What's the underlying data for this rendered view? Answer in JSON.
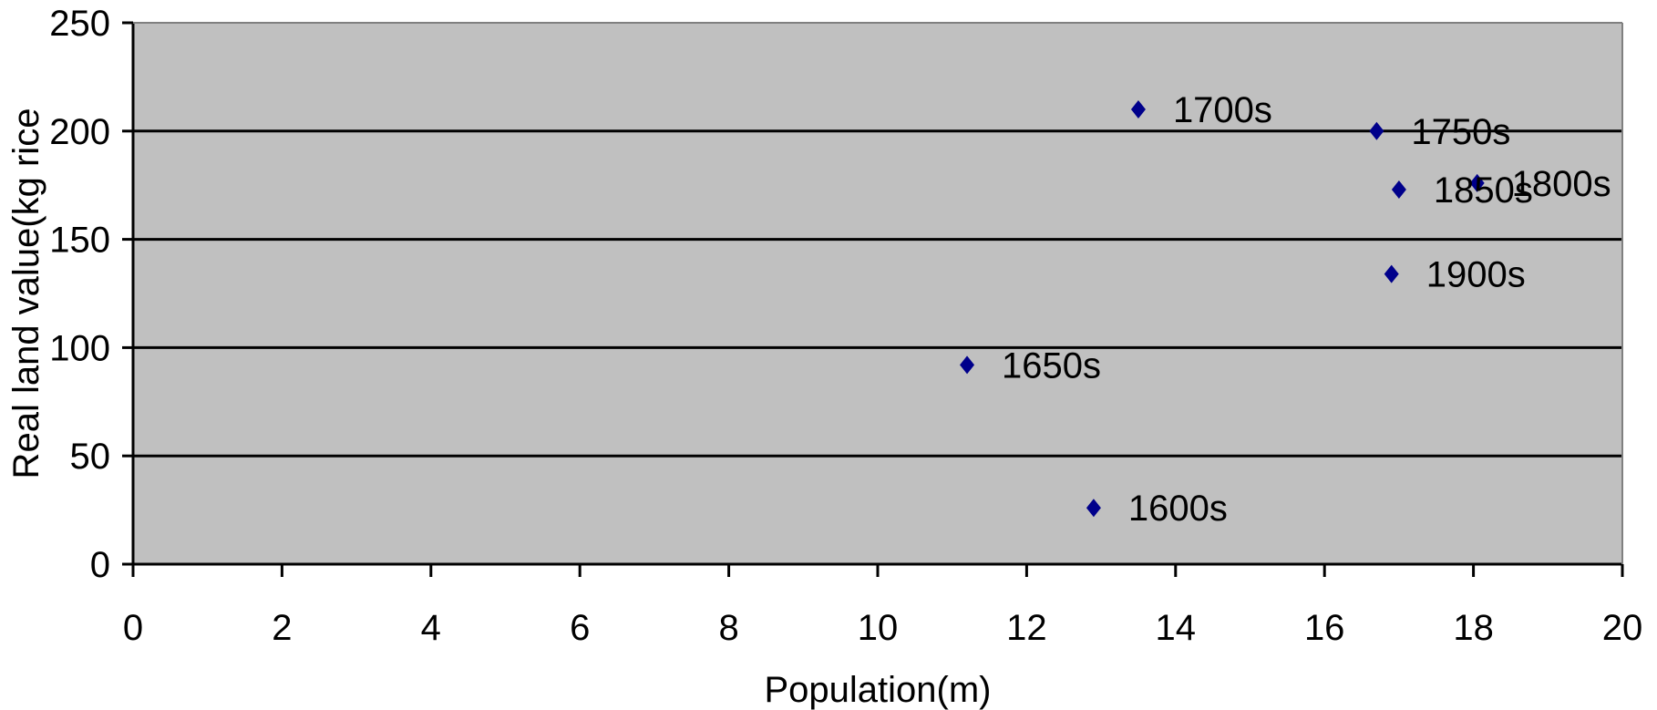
{
  "chart_data": {
    "type": "scatter",
    "xlabel": "Population(m)",
    "ylabel": "Real land value(kg rice",
    "xlim": [
      0,
      20
    ],
    "ylim": [
      0,
      250
    ],
    "xticks": [
      0,
      2,
      4,
      6,
      8,
      10,
      12,
      14,
      16,
      18,
      20
    ],
    "yticks": [
      0,
      50,
      100,
      150,
      200,
      250
    ],
    "grid": "horizontal",
    "colors": {
      "marker": "#00008B",
      "plot_bg": "#C0C0C0",
      "gridline": "#000000"
    },
    "points": [
      {
        "label": "1600s",
        "x": 12.9,
        "y": 26
      },
      {
        "label": "1650s",
        "x": 11.2,
        "y": 92
      },
      {
        "label": "1700s",
        "x": 13.5,
        "y": 210
      },
      {
        "label": "1750s",
        "x": 16.7,
        "y": 200
      },
      {
        "label": "1800s",
        "x": 18.05,
        "y": 176
      },
      {
        "label": "1850s",
        "x": 17.0,
        "y": 173
      },
      {
        "label": "1900s",
        "x": 16.9,
        "y": 134
      }
    ]
  }
}
